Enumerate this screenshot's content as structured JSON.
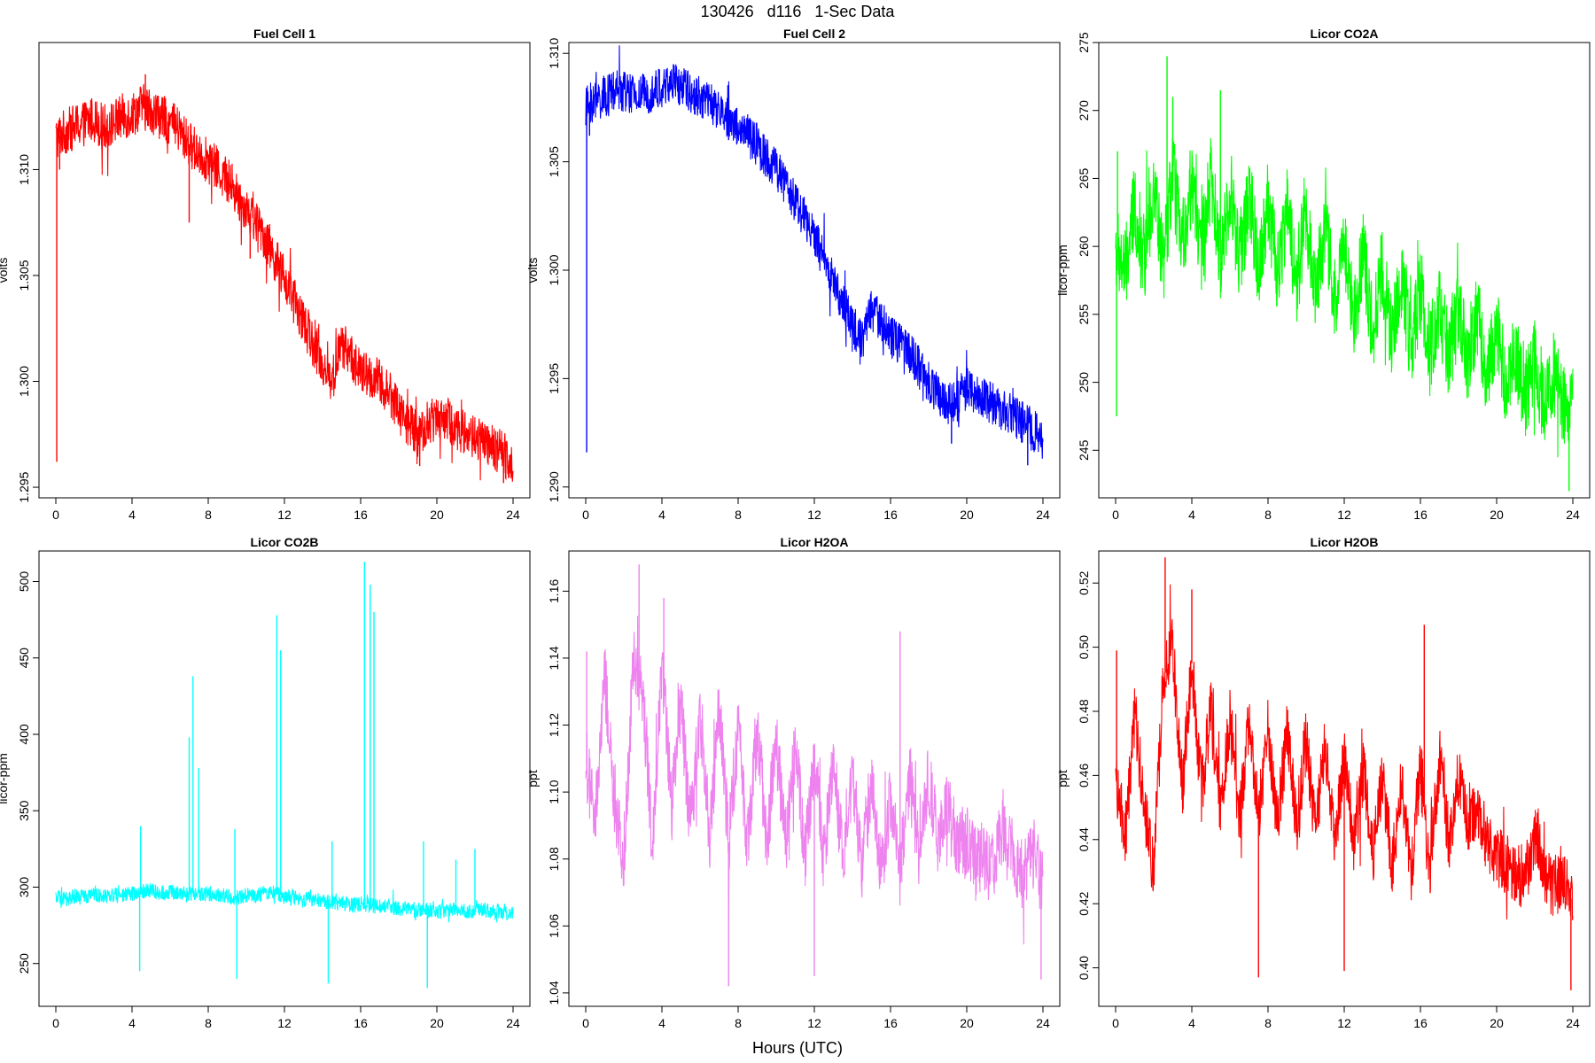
{
  "figure": {
    "title": "130426   d116   1-Sec Data",
    "xlabel": "Hours (UTC)"
  },
  "chart_data": [
    {
      "type": "line",
      "title": "Fuel Cell 1",
      "ylabel": "volts",
      "color": "#ff0000",
      "xlim": [
        0,
        24
      ],
      "xticks": [
        0,
        4,
        8,
        12,
        16,
        20,
        24
      ],
      "ylim": [
        1.2945,
        1.316
      ],
      "yticks": [
        "1.295",
        "1.300",
        "1.305",
        "1.310"
      ],
      "ytick_values": [
        1.295,
        1.3,
        1.305,
        1.31
      ],
      "x": [
        0,
        0.5,
        1,
        1.5,
        2,
        2.5,
        3,
        3.5,
        4,
        4.5,
        5,
        5.5,
        6,
        6.5,
        7,
        7.5,
        8,
        8.5,
        9,
        9.5,
        10,
        10.5,
        11,
        11.5,
        12,
        12.5,
        13,
        13.5,
        14,
        14.5,
        15,
        15.5,
        16,
        16.5,
        17,
        17.5,
        18,
        18.5,
        19,
        19.5,
        20,
        20.5,
        21,
        21.5,
        22,
        22.5,
        23,
        23.5,
        24
      ],
      "y": [
        1.3115,
        1.3118,
        1.312,
        1.3122,
        1.3124,
        1.312,
        1.3122,
        1.3125,
        1.3126,
        1.313,
        1.3128,
        1.3125,
        1.3122,
        1.3118,
        1.3112,
        1.3108,
        1.3104,
        1.31,
        1.3095,
        1.3088,
        1.3082,
        1.3075,
        1.3068,
        1.3058,
        1.3048,
        1.3038,
        1.3028,
        1.3018,
        1.3008,
        1.3,
        1.3018,
        1.3012,
        1.3004,
        1.3002,
        1.3,
        1.2994,
        1.2988,
        1.298,
        1.2975,
        1.2978,
        1.2985,
        1.2982,
        1.2978,
        1.2976,
        1.2974,
        1.297,
        1.2968,
        1.2966,
        1.2962
      ],
      "spread": 0.0011,
      "spikes": [
        [
          0.05,
          1.2962
        ],
        [
          0.2,
          1.31
        ],
        [
          4.7,
          1.3145
        ],
        [
          7.0,
          1.3075
        ],
        [
          10.2,
          1.3058
        ],
        [
          19.1,
          1.296
        ],
        [
          23.5,
          1.2952
        ]
      ]
    },
    {
      "type": "line",
      "title": "Fuel Cell 2",
      "ylabel": "volts",
      "color": "#0000ff",
      "xlim": [
        0,
        24
      ],
      "xticks": [
        0,
        4,
        8,
        12,
        16,
        20,
        24
      ],
      "ylim": [
        1.2895,
        1.3105
      ],
      "yticks": [
        "1.290",
        "1.295",
        "1.300",
        "1.305",
        "1.310"
      ],
      "ytick_values": [
        1.29,
        1.295,
        1.3,
        1.305,
        1.31
      ],
      "x": [
        0,
        0.5,
        1,
        1.5,
        2,
        2.5,
        3,
        3.5,
        4,
        4.5,
        5,
        5.5,
        6,
        6.5,
        7,
        7.5,
        8,
        8.5,
        9,
        9.5,
        10,
        10.5,
        11,
        11.5,
        12,
        12.5,
        13,
        13.5,
        14,
        14.5,
        15,
        15.5,
        16,
        16.5,
        17,
        17.5,
        18,
        18.5,
        19,
        19.5,
        20,
        20.5,
        21,
        21.5,
        22,
        22.5,
        23,
        23.5,
        24
      ],
      "y": [
        1.3075,
        1.3078,
        1.308,
        1.3082,
        1.3083,
        1.308,
        1.3081,
        1.3083,
        1.3084,
        1.3086,
        1.3085,
        1.3082,
        1.308,
        1.3077,
        1.3073,
        1.307,
        1.3066,
        1.3062,
        1.3058,
        1.3052,
        1.3046,
        1.304,
        1.3032,
        1.3024,
        1.3015,
        1.3005,
        1.2995,
        1.2985,
        1.2975,
        1.2968,
        1.2982,
        1.2977,
        1.297,
        1.2966,
        1.2962,
        1.2955,
        1.2948,
        1.2942,
        1.2938,
        1.294,
        1.2946,
        1.2943,
        1.294,
        1.2938,
        1.2935,
        1.2932,
        1.2929,
        1.2926,
        1.2922
      ],
      "spread": 0.001,
      "spikes": [
        [
          0.05,
          1.2916
        ],
        [
          0.2,
          1.3062
        ],
        [
          4.6,
          1.3095
        ],
        [
          7.5,
          1.306
        ],
        [
          11.0,
          1.3025
        ],
        [
          19.2,
          1.292
        ],
        [
          23.2,
          1.291
        ]
      ]
    },
    {
      "type": "line",
      "title": "Licor CO2A",
      "ylabel": "licor-ppm",
      "color": "#00ff00",
      "xlim": [
        0,
        24
      ],
      "xticks": [
        0,
        4,
        8,
        12,
        16,
        20,
        24
      ],
      "ylim": [
        241.5,
        275.0
      ],
      "yticks": [
        "245",
        "250",
        "255",
        "260",
        "265",
        "270",
        "275"
      ],
      "ytick_values": [
        245,
        250,
        255,
        260,
        265,
        270,
        275
      ],
      "x": [
        0,
        0.5,
        1,
        1.5,
        2,
        2.5,
        3,
        3.5,
        4,
        4.5,
        5,
        5.5,
        6,
        6.5,
        7,
        7.5,
        8,
        8.5,
        9,
        9.5,
        10,
        10.5,
        11,
        11.5,
        12,
        12.5,
        13,
        13.5,
        14,
        14.5,
        15,
        15.5,
        16,
        16.5,
        17,
        17.5,
        18,
        18.5,
        19,
        19.5,
        20,
        20.5,
        21,
        21.5,
        22,
        22.5,
        23,
        23.5,
        24
      ],
      "y": [
        260.0,
        258.0,
        263.0,
        259.0,
        264.5,
        258.5,
        265.5,
        260.0,
        265.0,
        259.5,
        265.0,
        259.0,
        264.5,
        259.0,
        264.0,
        258.5,
        263.5,
        258.0,
        263.0,
        257.5,
        262.5,
        257.0,
        261.5,
        256.0,
        260.5,
        255.0,
        259.5,
        254.0,
        258.5,
        253.0,
        257.5,
        252.5,
        257.0,
        252.0,
        256.0,
        251.5,
        255.5,
        251.0,
        255.0,
        250.5,
        254.0,
        250.0,
        252.0,
        249.0,
        251.5,
        248.5,
        250.5,
        248.0,
        249.0
      ],
      "spread": 3.2,
      "spikes": [
        [
          0.05,
          247.5
        ],
        [
          0.1,
          267.0
        ],
        [
          2.7,
          274.0
        ],
        [
          3.0,
          271.0
        ],
        [
          5.5,
          271.5
        ],
        [
          23.8,
          242.0
        ]
      ]
    },
    {
      "type": "line",
      "title": "Licor CO2B",
      "ylabel": "licor-ppm",
      "color": "#00ffff",
      "xlim": [
        0,
        24
      ],
      "xticks": [
        0,
        4,
        8,
        12,
        16,
        20,
        24
      ],
      "ylim": [
        222,
        520
      ],
      "yticks": [
        "250",
        "300",
        "350",
        "400",
        "450",
        "500"
      ],
      "ytick_values": [
        250,
        300,
        350,
        400,
        450,
        500
      ],
      "x": [
        0,
        0.5,
        1,
        1.5,
        2,
        2.5,
        3,
        3.5,
        4,
        4.5,
        5,
        5.5,
        6,
        6.5,
        7,
        7.5,
        8,
        8.5,
        9,
        9.5,
        10,
        10.5,
        11,
        11.5,
        12,
        12.5,
        13,
        13.5,
        14,
        14.5,
        15,
        15.5,
        16,
        16.5,
        17,
        17.5,
        18,
        18.5,
        19,
        19.5,
        20,
        20.5,
        21,
        21.5,
        22,
        22.5,
        23,
        23.5,
        24
      ],
      "y": [
        293,
        292,
        294,
        293,
        296,
        294,
        295,
        294,
        296,
        297,
        298,
        296,
        297,
        296,
        296,
        296,
        295,
        295,
        294,
        293,
        295,
        295,
        296,
        296,
        294,
        293,
        292,
        292,
        291,
        290,
        289,
        288,
        289,
        288,
        287,
        287,
        286,
        286,
        285,
        285,
        284,
        284,
        285,
        284,
        285,
        285,
        284,
        284,
        283
      ],
      "spread": 5,
      "spikes": [
        [
          4.4,
          245
        ],
        [
          4.45,
          340
        ],
        [
          7.0,
          398
        ],
        [
          7.2,
          438
        ],
        [
          7.5,
          378
        ],
        [
          9.4,
          338
        ],
        [
          9.5,
          240
        ],
        [
          11.6,
          478
        ],
        [
          11.8,
          455
        ],
        [
          14.3,
          237
        ],
        [
          14.5,
          330
        ],
        [
          16.2,
          513
        ],
        [
          16.5,
          498
        ],
        [
          16.7,
          480
        ],
        [
          19.3,
          330
        ],
        [
          19.5,
          234
        ],
        [
          21.0,
          318
        ],
        [
          22.0,
          325
        ]
      ]
    },
    {
      "type": "line",
      "title": "Licor H2OA",
      "ylabel": "ppt",
      "color": "#ee82ee",
      "xlim": [
        0,
        24
      ],
      "xticks": [
        0,
        4,
        8,
        12,
        16,
        20,
        24
      ],
      "ylim": [
        1.036,
        1.172
      ],
      "yticks": [
        "1.04",
        "1.06",
        "1.08",
        "1.10",
        "1.12",
        "1.14",
        "1.16"
      ],
      "ytick_values": [
        1.04,
        1.06,
        1.08,
        1.1,
        1.12,
        1.14,
        1.16
      ],
      "x": [
        0,
        0.5,
        1,
        1.5,
        2,
        2.5,
        3,
        3.5,
        4,
        4.5,
        5,
        5.5,
        6,
        6.5,
        7,
        7.5,
        8,
        8.5,
        9,
        9.5,
        10,
        10.5,
        11,
        11.5,
        12,
        12.5,
        13,
        13.5,
        14,
        14.5,
        15,
        15.5,
        16,
        16.5,
        17,
        17.5,
        18,
        18.5,
        19,
        19.5,
        20,
        20.5,
        21,
        21.5,
        22,
        22.5,
        23,
        23.5,
        24
      ],
      "y": [
        1.11,
        1.09,
        1.135,
        1.095,
        1.08,
        1.14,
        1.13,
        1.085,
        1.14,
        1.095,
        1.125,
        1.09,
        1.125,
        1.085,
        1.125,
        1.085,
        1.12,
        1.085,
        1.12,
        1.085,
        1.115,
        1.085,
        1.115,
        1.08,
        1.11,
        1.08,
        1.11,
        1.08,
        1.105,
        1.078,
        1.105,
        1.075,
        1.1,
        1.075,
        1.105,
        1.08,
        1.105,
        1.085,
        1.095,
        1.085,
        1.085,
        1.08,
        1.078,
        1.08,
        1.09,
        1.08,
        1.075,
        1.082,
        1.072
      ],
      "spread": 0.011,
      "spikes": [
        [
          0.05,
          1.142
        ],
        [
          2.8,
          1.168
        ],
        [
          4.1,
          1.158
        ],
        [
          7.5,
          1.042
        ],
        [
          12.0,
          1.045
        ],
        [
          16.5,
          1.148
        ],
        [
          23.9,
          1.044
        ]
      ]
    },
    {
      "type": "line",
      "title": "Licor H2OB",
      "ylabel": "ppt",
      "color": "#ff0000",
      "xlim": [
        0,
        24
      ],
      "xticks": [
        0,
        4,
        8,
        12,
        16,
        20,
        24
      ],
      "ylim": [
        0.388,
        0.53
      ],
      "yticks": [
        "0.40",
        "0.42",
        "0.44",
        "0.46",
        "0.48",
        "0.50",
        "0.52"
      ],
      "ytick_values": [
        0.4,
        0.42,
        0.44,
        0.46,
        0.48,
        0.5,
        0.52
      ],
      "x": [
        0,
        0.5,
        1,
        1.5,
        2,
        2.5,
        3,
        3.5,
        4,
        4.5,
        5,
        5.5,
        6,
        6.5,
        7,
        7.5,
        8,
        8.5,
        9,
        9.5,
        10,
        10.5,
        11,
        11.5,
        12,
        12.5,
        13,
        13.5,
        14,
        14.5,
        15,
        15.5,
        16,
        16.5,
        17,
        17.5,
        18,
        18.5,
        19,
        19.5,
        20,
        20.5,
        21,
        21.5,
        22,
        22.5,
        23,
        23.5,
        24
      ],
      "y": [
        0.46,
        0.44,
        0.48,
        0.45,
        0.43,
        0.49,
        0.5,
        0.455,
        0.495,
        0.455,
        0.48,
        0.45,
        0.478,
        0.448,
        0.476,
        0.446,
        0.475,
        0.445,
        0.474,
        0.444,
        0.472,
        0.442,
        0.47,
        0.44,
        0.466,
        0.438,
        0.462,
        0.435,
        0.46,
        0.432,
        0.458,
        0.428,
        0.465,
        0.43,
        0.466,
        0.44,
        0.46,
        0.445,
        0.448,
        0.44,
        0.435,
        0.432,
        0.43,
        0.428,
        0.442,
        0.43,
        0.425,
        0.428,
        0.42
      ],
      "spread": 0.01,
      "spikes": [
        [
          0.05,
          0.499
        ],
        [
          2.6,
          0.528
        ],
        [
          4.0,
          0.518
        ],
        [
          7.5,
          0.397
        ],
        [
          12.0,
          0.399
        ],
        [
          16.2,
          0.507
        ],
        [
          23.9,
          0.393
        ]
      ]
    }
  ]
}
